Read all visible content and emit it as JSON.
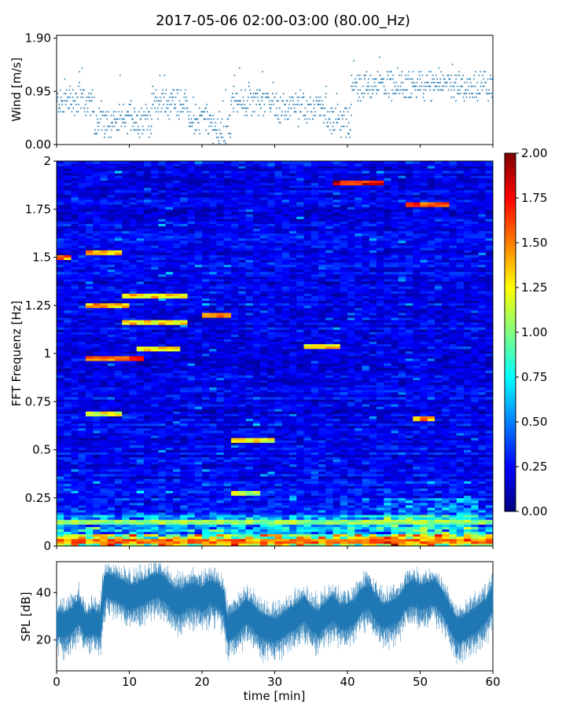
{
  "chart_data": [
    {
      "type": "scatter",
      "panel": "wind",
      "title": "2017-05-06 02:00-03:00 (80.00_Hz)",
      "xlabel": "",
      "ylabel": "Wind [m/s]",
      "xlim": [
        0,
        60
      ],
      "ylim": [
        0.0,
        1.95
      ],
      "yticks": [
        0.0,
        0.95,
        1.9
      ],
      "ytick_labels": [
        "0.00",
        "0.95",
        "1.90"
      ],
      "color": "#1f77b4",
      "segments": [
        {
          "x": [
            0,
            5
          ],
          "level": 0.75
        },
        {
          "x": [
            5,
            9
          ],
          "level": 0.4
        },
        {
          "x": [
            9,
            13
          ],
          "level": 0.45
        },
        {
          "x": [
            13,
            18
          ],
          "level": 0.75
        },
        {
          "x": [
            18,
            21
          ],
          "level": 0.45
        },
        {
          "x": [
            21,
            24
          ],
          "level": 0.3
        },
        {
          "x": [
            24,
            30
          ],
          "level": 0.8
        },
        {
          "x": [
            30,
            37
          ],
          "level": 0.65
        },
        {
          "x": [
            37,
            40.5
          ],
          "level": 0.4
        },
        {
          "x": [
            40.5,
            60
          ],
          "level": 1.05
        }
      ]
    },
    {
      "type": "heatmap",
      "panel": "spectrogram",
      "xlabel": "",
      "ylabel": "FFT Frequenz [Hz]",
      "xlim": [
        0,
        60
      ],
      "ylim": [
        0,
        2
      ],
      "yticks": [
        0,
        0.25,
        0.5,
        0.75,
        1,
        1.25,
        1.5,
        1.75,
        2
      ],
      "ytick_labels": [
        "0",
        "0.25",
        "0.5",
        "0.75",
        "1",
        "1.25",
        "1.5",
        "1.75",
        "2"
      ],
      "colormap": "jet",
      "colorbar": {
        "range": [
          0.0,
          2.0
        ],
        "ticks": [
          0.0,
          0.25,
          0.5,
          0.75,
          1.0,
          1.25,
          1.5,
          1.75,
          2.0
        ],
        "tick_labels": [
          "0.00",
          "0.25",
          "0.50",
          "0.75",
          "1.00",
          "1.25",
          "1.50",
          "1.75",
          "2.00"
        ]
      },
      "features": [
        {
          "x": [
            38.5,
            45
          ],
          "f": 1.89,
          "value": 2.0
        },
        {
          "x": [
            48,
            53.5
          ],
          "f": 1.77,
          "value": 1.9
        },
        {
          "x": [
            4,
            8.5
          ],
          "f": 1.53,
          "value": 1.6
        },
        {
          "x": [
            0,
            1.5
          ],
          "f": 1.5,
          "value": 1.7
        },
        {
          "x": [
            4,
            10
          ],
          "f": 1.25,
          "value": 1.6
        },
        {
          "x": [
            9,
            18
          ],
          "f": 1.3,
          "value": 1.5
        },
        {
          "x": [
            9,
            18
          ],
          "f": 1.16,
          "value": 1.5
        },
        {
          "x": [
            20,
            24
          ],
          "f": 1.2,
          "value": 1.6
        },
        {
          "x": [
            34.5,
            38.5
          ],
          "f": 1.04,
          "value": 1.5
        },
        {
          "x": [
            4,
            11.5
          ],
          "f": 0.97,
          "value": 1.8
        },
        {
          "x": [
            11.5,
            16.5
          ],
          "f": 1.02,
          "value": 1.5
        },
        {
          "x": [
            4,
            8.5
          ],
          "f": 0.69,
          "value": 1.4
        },
        {
          "x": [
            49.5,
            52
          ],
          "f": 0.66,
          "value": 1.7
        },
        {
          "x": [
            24,
            29.5
          ],
          "f": 0.55,
          "value": 1.4
        },
        {
          "x": [
            24,
            28
          ],
          "f": 0.27,
          "value": 1.3
        },
        {
          "x": [
            0,
            60
          ],
          "f": 0.03,
          "value": 1.7
        },
        {
          "x": [
            0,
            60
          ],
          "f": 0.12,
          "value": 1.2
        }
      ]
    },
    {
      "type": "line",
      "panel": "spl",
      "xlabel": "time [min]",
      "ylabel": "SPL [dB]",
      "xlim": [
        0,
        60
      ],
      "ylim": [
        7,
        53
      ],
      "yticks": [
        20,
        40
      ],
      "ytick_labels": [
        "20",
        "40"
      ],
      "xticks": [
        0,
        10,
        20,
        30,
        40,
        50,
        60
      ],
      "xtick_labels": [
        "0",
        "10",
        "20",
        "30",
        "40",
        "50",
        "60"
      ],
      "color": "#1f77b4",
      "x": [
        0,
        1,
        2,
        3,
        4,
        5,
        6,
        6.5,
        7,
        8,
        9,
        10,
        11,
        12,
        13,
        14,
        15,
        16,
        17,
        18,
        19,
        20,
        21,
        22,
        23,
        23.5,
        24,
        25,
        26,
        27,
        28,
        29,
        30,
        31,
        32,
        33,
        34,
        35,
        36,
        37,
        38,
        39,
        40,
        41,
        42,
        43,
        44,
        45,
        46,
        47,
        48,
        49,
        50,
        51,
        52,
        53,
        54,
        55,
        56,
        57,
        58,
        59,
        60
      ],
      "y": [
        27,
        26,
        28,
        32,
        26,
        28,
        26,
        41,
        43,
        42,
        40,
        38,
        39,
        40,
        42,
        43,
        41,
        37,
        36,
        38,
        39,
        37,
        40,
        39,
        36,
        24,
        26,
        28,
        32,
        30,
        26,
        25,
        24,
        26,
        28,
        30,
        33,
        29,
        27,
        31,
        33,
        30,
        30,
        32,
        37,
        38,
        33,
        30,
        31,
        33,
        38,
        40,
        38,
        39,
        40,
        36,
        30,
        24,
        25,
        27,
        29,
        32,
        38
      ]
    }
  ]
}
